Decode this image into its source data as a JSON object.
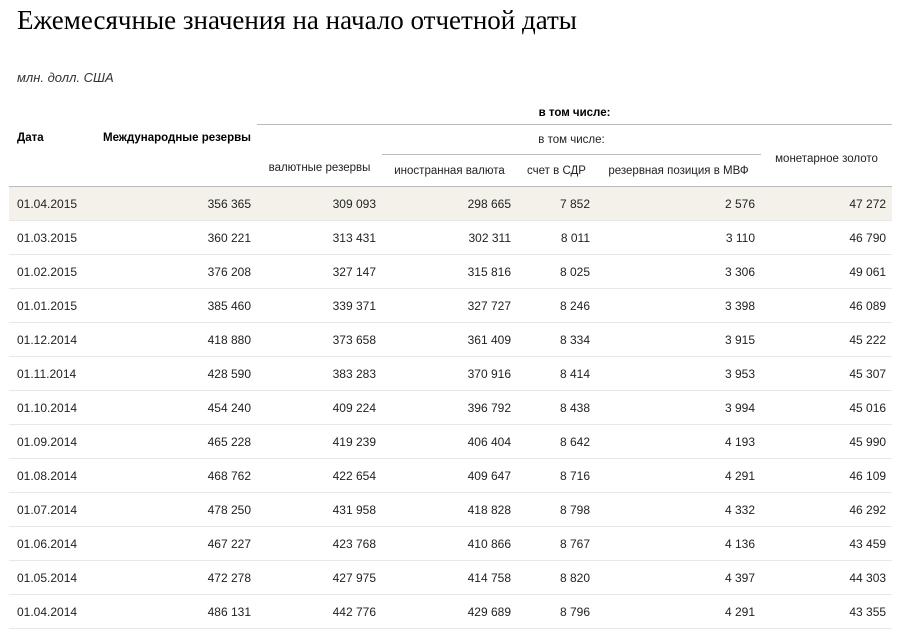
{
  "page": {
    "title": "Ежемесячные значения на начало отчетной даты",
    "units": "млн. долл. США"
  },
  "table": {
    "headers": {
      "date": "Дата",
      "intl_reserves": "Международные резервы",
      "incl_group": "в том числе:",
      "fx_reserves": "валютные резервы",
      "incl_subgroup": "в том числе:",
      "foreign_currency": "иностранная валюта",
      "sdr": "счет в СДР",
      "imf_position": "резервная позиция в МВФ",
      "gold": "монетарное золото"
    },
    "rows": [
      {
        "date": "01.04.2015",
        "intl": "356 365",
        "fx": "309 093",
        "currency": "298 665",
        "sdr": "7 852",
        "imf": "2 576",
        "gold": "47 272"
      },
      {
        "date": "01.03.2015",
        "intl": "360 221",
        "fx": "313 431",
        "currency": "302 311",
        "sdr": "8 011",
        "imf": "3 110",
        "gold": "46 790"
      },
      {
        "date": "01.02.2015",
        "intl": "376 208",
        "fx": "327 147",
        "currency": "315 816",
        "sdr": "8 025",
        "imf": "3 306",
        "gold": "49 061"
      },
      {
        "date": "01.01.2015",
        "intl": "385 460",
        "fx": "339 371",
        "currency": "327 727",
        "sdr": "8 246",
        "imf": "3 398",
        "gold": "46 089"
      },
      {
        "date": "01.12.2014",
        "intl": "418 880",
        "fx": "373 658",
        "currency": "361 409",
        "sdr": "8 334",
        "imf": "3 915",
        "gold": "45 222"
      },
      {
        "date": "01.11.2014",
        "intl": "428 590",
        "fx": "383 283",
        "currency": "370 916",
        "sdr": "8 414",
        "imf": "3 953",
        "gold": "45 307"
      },
      {
        "date": "01.10.2014",
        "intl": "454 240",
        "fx": "409 224",
        "currency": "396 792",
        "sdr": "8 438",
        "imf": "3 994",
        "gold": "45 016"
      },
      {
        "date": "01.09.2014",
        "intl": "465 228",
        "fx": "419 239",
        "currency": "406 404",
        "sdr": "8 642",
        "imf": "4 193",
        "gold": "45 990"
      },
      {
        "date": "01.08.2014",
        "intl": "468 762",
        "fx": "422 654",
        "currency": "409 647",
        "sdr": "8 716",
        "imf": "4 291",
        "gold": "46 109"
      },
      {
        "date": "01.07.2014",
        "intl": "478 250",
        "fx": "431 958",
        "currency": "418 828",
        "sdr": "8 798",
        "imf": "4 332",
        "gold": "46 292"
      },
      {
        "date": "01.06.2014",
        "intl": "467 227",
        "fx": "423 768",
        "currency": "410 866",
        "sdr": "8 767",
        "imf": "4 136",
        "gold": "43 459"
      },
      {
        "date": "01.05.2014",
        "intl": "472 278",
        "fx": "427 975",
        "currency": "414 758",
        "sdr": "8 820",
        "imf": "4 397",
        "gold": "44 303"
      },
      {
        "date": "01.04.2014",
        "intl": "486 131",
        "fx": "442 776",
        "currency": "429 689",
        "sdr": "8 796",
        "imf": "4 291",
        "gold": "43 355"
      }
    ]
  },
  "colors": {
    "highlight_row": "#f4f1ea",
    "header_rule": "#bbbbbb",
    "row_rule": "#e8e8e8"
  }
}
